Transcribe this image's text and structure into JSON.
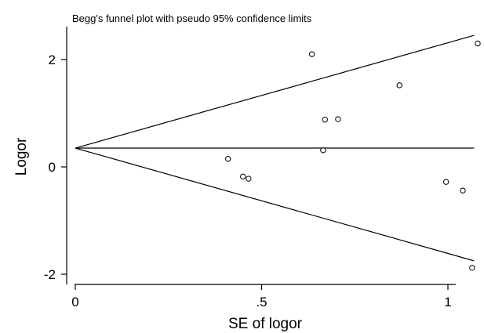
{
  "chart_data": {
    "type": "scatter",
    "title": "Begg's funnel plot with pseudo 95% confidence limits",
    "xlabel": "SE of logor",
    "ylabel": "Logor",
    "xlim": [
      0,
      1.08
    ],
    "ylim": [
      -2.05,
      2.65
    ],
    "xticks": [
      {
        "value": 0,
        "label": "0"
      },
      {
        "value": 0.5,
        "label": ".5"
      },
      {
        "value": 1,
        "label": "1"
      }
    ],
    "yticks": [
      {
        "value": -2,
        "label": "-2"
      },
      {
        "value": 0,
        "label": "0"
      },
      {
        "value": 2,
        "label": "2"
      }
    ],
    "grid": false,
    "pooled_estimate": 0.35,
    "ci_limits": {
      "upper": [
        [
          0,
          0.35
        ],
        [
          1.07,
          2.45
        ]
      ],
      "lower": [
        [
          0,
          0.35
        ],
        [
          1.07,
          -1.75
        ]
      ]
    },
    "points": [
      {
        "x": 0.41,
        "y": 0.15
      },
      {
        "x": 0.45,
        "y": -0.18
      },
      {
        "x": 0.465,
        "y": -0.22
      },
      {
        "x": 0.635,
        "y": 2.1
      },
      {
        "x": 0.665,
        "y": 0.31
      },
      {
        "x": 0.67,
        "y": 0.88
      },
      {
        "x": 0.705,
        "y": 0.89
      },
      {
        "x": 0.87,
        "y": 1.52
      },
      {
        "x": 0.995,
        "y": -0.28
      },
      {
        "x": 1.04,
        "y": -0.44
      },
      {
        "x": 1.065,
        "y": -1.88
      },
      {
        "x": 1.08,
        "y": 2.3
      }
    ]
  }
}
